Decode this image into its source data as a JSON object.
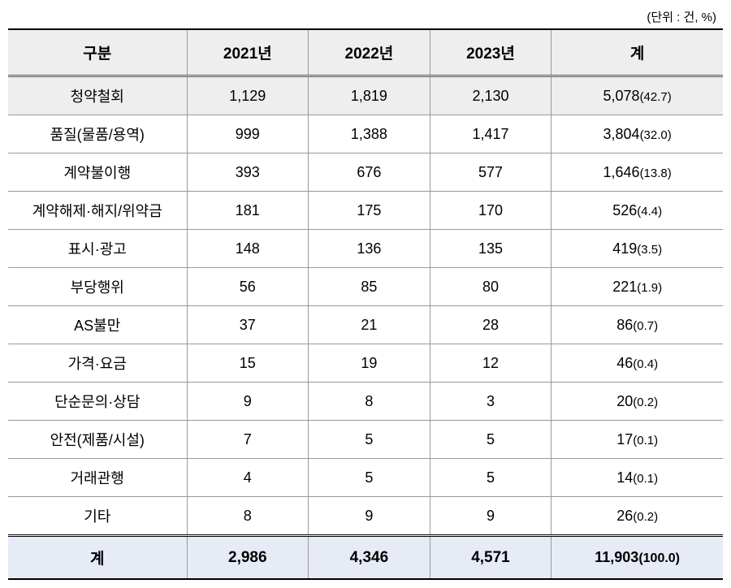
{
  "unit_label": "(단위 : 건, %)",
  "header": {
    "category": "구분",
    "y2021": "2021년",
    "y2022": "2022년",
    "y2023": "2023년",
    "total": "계"
  },
  "rows": [
    {
      "category": "청약철회",
      "y2021": "1,129",
      "y2022": "1,819",
      "y2023": "2,130",
      "total": "5,078",
      "pct": "(42.7)",
      "highlight": true
    },
    {
      "category": "품질(물품/용역)",
      "y2021": "999",
      "y2022": "1,388",
      "y2023": "1,417",
      "total": "3,804",
      "pct": "(32.0)",
      "highlight": false
    },
    {
      "category": "계약불이행",
      "y2021": "393",
      "y2022": "676",
      "y2023": "577",
      "total": "1,646",
      "pct": "(13.8)",
      "highlight": false
    },
    {
      "category": "계약해제·해지/위약금",
      "y2021": "181",
      "y2022": "175",
      "y2023": "170",
      "total": "526",
      "pct": "(4.4)",
      "highlight": false
    },
    {
      "category": "표시·광고",
      "y2021": "148",
      "y2022": "136",
      "y2023": "135",
      "total": "419",
      "pct": "(3.5)",
      "highlight": false
    },
    {
      "category": "부당행위",
      "y2021": "56",
      "y2022": "85",
      "y2023": "80",
      "total": "221",
      "pct": "(1.9)",
      "highlight": false
    },
    {
      "category": "AS불만",
      "y2021": "37",
      "y2022": "21",
      "y2023": "28",
      "total": "86",
      "pct": "(0.7)",
      "highlight": false
    },
    {
      "category": "가격·요금",
      "y2021": "15",
      "y2022": "19",
      "y2023": "12",
      "total": "46",
      "pct": "(0.4)",
      "highlight": false
    },
    {
      "category": "단순문의·상담",
      "y2021": "9",
      "y2022": "8",
      "y2023": "3",
      "total": "20",
      "pct": "(0.2)",
      "highlight": false
    },
    {
      "category": "안전(제품/시설)",
      "y2021": "7",
      "y2022": "5",
      "y2023": "5",
      "total": "17",
      "pct": "(0.1)",
      "highlight": false
    },
    {
      "category": "거래관행",
      "y2021": "4",
      "y2022": "5",
      "y2023": "5",
      "total": "14",
      "pct": "(0.1)",
      "highlight": false
    },
    {
      "category": "기타",
      "y2021": "8",
      "y2022": "9",
      "y2023": "9",
      "total": "26",
      "pct": "(0.2)",
      "highlight": false
    }
  ],
  "footer": {
    "category": "계",
    "y2021": "2,986",
    "y2022": "4,346",
    "y2023": "4,571",
    "total": "11,903",
    "pct": "(100.0)"
  },
  "style": {
    "header_bg": "#eeeeee",
    "highlight_bg": "#eeeeee",
    "footer_bg": "#e6ebf5",
    "border_color": "#999999",
    "strong_border": "#000000"
  }
}
